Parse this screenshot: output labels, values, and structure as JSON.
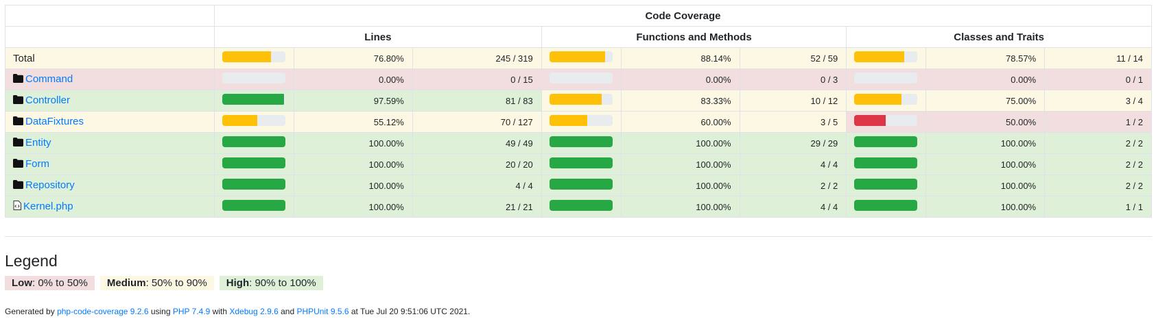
{
  "header": {
    "title": "Code Coverage",
    "lines": "Lines",
    "functions": "Functions and Methods",
    "classes": "Classes and Traits"
  },
  "rows": [
    {
      "name": "Total",
      "icon": "none",
      "link": false,
      "status": "warning",
      "lines": {
        "pct": "76.80%",
        "count": "245 / 319",
        "value": 0.768,
        "level": "warning",
        "cell": "warning"
      },
      "functions": {
        "pct": "88.14%",
        "count": "52 / 59",
        "value": 0.8814,
        "level": "warning",
        "cell": "warning"
      },
      "classes": {
        "pct": "78.57%",
        "count": "11 / 14",
        "value": 0.7857,
        "level": "warning",
        "cell": "warning"
      }
    },
    {
      "name": "Command",
      "icon": "folder-icon",
      "link": true,
      "status": "danger",
      "lines": {
        "pct": "0.00%",
        "count": "0 / 15",
        "value": 0,
        "level": "danger",
        "cell": "danger"
      },
      "functions": {
        "pct": "0.00%",
        "count": "0 / 3",
        "value": 0,
        "level": "danger",
        "cell": "danger"
      },
      "classes": {
        "pct": "0.00%",
        "count": "0 / 1",
        "value": 0,
        "level": "danger",
        "cell": "danger"
      }
    },
    {
      "name": "Controller",
      "icon": "folder-icon",
      "link": true,
      "status": "success",
      "lines": {
        "pct": "97.59%",
        "count": "81 / 83",
        "value": 0.9759,
        "level": "success",
        "cell": "success"
      },
      "functions": {
        "pct": "83.33%",
        "count": "10 / 12",
        "value": 0.8333,
        "level": "warning",
        "cell": "warning"
      },
      "classes": {
        "pct": "75.00%",
        "count": "3 / 4",
        "value": 0.75,
        "level": "warning",
        "cell": "warning"
      }
    },
    {
      "name": "DataFixtures",
      "icon": "folder-icon",
      "link": true,
      "status": "warning",
      "lines": {
        "pct": "55.12%",
        "count": "70 / 127",
        "value": 0.5512,
        "level": "warning",
        "cell": "warning"
      },
      "functions": {
        "pct": "60.00%",
        "count": "3 / 5",
        "value": 0.6,
        "level": "warning",
        "cell": "warning"
      },
      "classes": {
        "pct": "50.00%",
        "count": "1 / 2",
        "value": 0.5,
        "level": "danger",
        "cell": "danger"
      }
    },
    {
      "name": "Entity",
      "icon": "folder-icon",
      "link": true,
      "status": "success",
      "lines": {
        "pct": "100.00%",
        "count": "49 / 49",
        "value": 1,
        "level": "success",
        "cell": "success"
      },
      "functions": {
        "pct": "100.00%",
        "count": "29 / 29",
        "value": 1,
        "level": "success",
        "cell": "success"
      },
      "classes": {
        "pct": "100.00%",
        "count": "2 / 2",
        "value": 1,
        "level": "success",
        "cell": "success"
      }
    },
    {
      "name": "Form",
      "icon": "folder-icon",
      "link": true,
      "status": "success",
      "lines": {
        "pct": "100.00%",
        "count": "20 / 20",
        "value": 1,
        "level": "success",
        "cell": "success"
      },
      "functions": {
        "pct": "100.00%",
        "count": "4 / 4",
        "value": 1,
        "level": "success",
        "cell": "success"
      },
      "classes": {
        "pct": "100.00%",
        "count": "2 / 2",
        "value": 1,
        "level": "success",
        "cell": "success"
      }
    },
    {
      "name": "Repository",
      "icon": "folder-icon",
      "link": true,
      "status": "success",
      "lines": {
        "pct": "100.00%",
        "count": "4 / 4",
        "value": 1,
        "level": "success",
        "cell": "success"
      },
      "functions": {
        "pct": "100.00%",
        "count": "2 / 2",
        "value": 1,
        "level": "success",
        "cell": "success"
      },
      "classes": {
        "pct": "100.00%",
        "count": "2 / 2",
        "value": 1,
        "level": "success",
        "cell": "success"
      }
    },
    {
      "name": "Kernel.php",
      "icon": "code-file-icon",
      "link": true,
      "status": "success",
      "lines": {
        "pct": "100.00%",
        "count": "21 / 21",
        "value": 1,
        "level": "success",
        "cell": "success"
      },
      "functions": {
        "pct": "100.00%",
        "count": "4 / 4",
        "value": 1,
        "level": "success",
        "cell": "success"
      },
      "classes": {
        "pct": "100.00%",
        "count": "1 / 1",
        "value": 1,
        "level": "success",
        "cell": "success"
      }
    }
  ],
  "legend": {
    "title": "Legend",
    "low_label": "Low",
    "low_range": ": 0% to 50%",
    "medium_label": "Medium",
    "medium_range": ": 50% to 90%",
    "high_label": "High",
    "high_range": ": 90% to 100%"
  },
  "footer": {
    "prefix": "Generated by ",
    "tool": "php-code-coverage 9.2.6",
    "using": " using ",
    "php": "PHP 7.4.9",
    "with": " with ",
    "xdebug": "Xdebug 2.9.6",
    "and": " and ",
    "phpunit": "PHPUnit 9.5.6",
    "suffix": " at Tue Jul 20 9:51:06 UTC 2021."
  },
  "colors": {
    "success": "#28a745",
    "warning": "#ffc107",
    "danger": "#dc3545",
    "link": "#007bff"
  }
}
